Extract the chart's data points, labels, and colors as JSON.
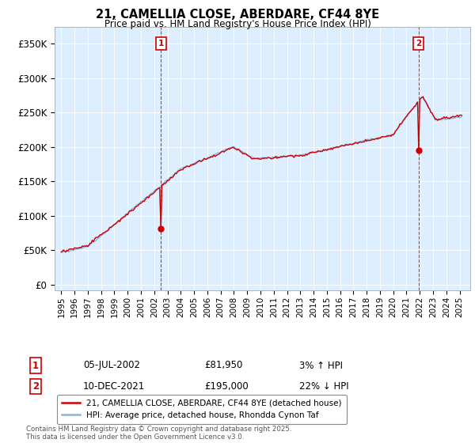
{
  "title_line1": "21, CAMELLIA CLOSE, ABERDARE, CF44 8YE",
  "title_line2": "Price paid vs. HM Land Registry's House Price Index (HPI)",
  "yticks": [
    0,
    50000,
    100000,
    150000,
    200000,
    250000,
    300000,
    350000
  ],
  "ytick_labels": [
    "£0",
    "£50K",
    "£100K",
    "£150K",
    "£200K",
    "£250K",
    "£300K",
    "£350K"
  ],
  "ylim": [
    -8000,
    375000
  ],
  "hpi_color": "#8ab4d8",
  "price_color": "#cc0000",
  "sale1_date": "05-JUL-2002",
  "sale1_price": "£81,950",
  "sale1_hpi": "3% ↑ HPI",
  "sale2_date": "10-DEC-2021",
  "sale2_price": "£195,000",
  "sale2_hpi": "22% ↓ HPI",
  "legend_line1": "21, CAMELLIA CLOSE, ABERDARE, CF44 8YE (detached house)",
  "legend_line2": "HPI: Average price, detached house, Rhondda Cynon Taf",
  "footnote": "Contains HM Land Registry data © Crown copyright and database right 2025.\nThis data is licensed under the Open Government Licence v3.0.",
  "background_color": "#ffffff",
  "plot_bg_color": "#ddeeff",
  "grid_color": "#ffffff",
  "marker_box_color": "#cc0000"
}
